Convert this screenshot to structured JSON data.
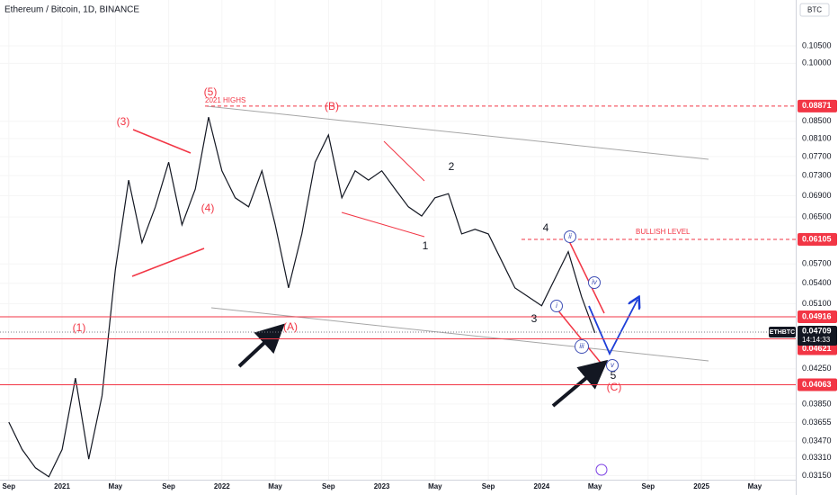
{
  "header": {
    "title": "Ethereum / Bitcoin, 1D, BINANCE",
    "currency": "BTC"
  },
  "chart_data": {
    "type": "line",
    "log_scale": true,
    "x": [
      "2020-09",
      "2020-10",
      "2020-11",
      "2020-12",
      "2021-01",
      "2021-02",
      "2021-03",
      "2021-04",
      "2021-05",
      "2021-06",
      "2021-07",
      "2021-08",
      "2021-09",
      "2021-10",
      "2021-11",
      "2021-12",
      "2022-01",
      "2022-02",
      "2022-03",
      "2022-04",
      "2022-05",
      "2022-06",
      "2022-07",
      "2022-08",
      "2022-09",
      "2022-10",
      "2022-11",
      "2022-12",
      "2023-01",
      "2023-02",
      "2023-03",
      "2023-04",
      "2023-05",
      "2023-06",
      "2023-07",
      "2023-08",
      "2023-09",
      "2023-10",
      "2023-11",
      "2023-12",
      "2024-01",
      "2024-02",
      "2024-03",
      "2024-04",
      "2024-05"
    ],
    "series": [
      {
        "name": "ETHBTC",
        "color": "#131722",
        "values": [
          0.0366,
          0.0339,
          0.0322,
          0.0314,
          0.0339,
          0.0414,
          0.033,
          0.0394,
          0.0561,
          0.0721,
          0.0605,
          0.0669,
          0.0758,
          0.0636,
          0.0703,
          0.086,
          0.074,
          0.0686,
          0.0669,
          0.074,
          0.0636,
          0.0533,
          0.062,
          0.0758,
          0.0818,
          0.0686,
          0.074,
          0.0721,
          0.074,
          0.0703,
          0.0669,
          0.0652,
          0.0686,
          0.0694,
          0.062,
          0.0628,
          0.062,
          0.0575,
          0.0533,
          0.052,
          0.0507,
          0.0547,
          0.059,
          0.052,
          0.047
        ]
      }
    ],
    "xlim": [
      "2020-08",
      "2025-07"
    ],
    "xticks": [
      {
        "value": "2020-09",
        "label": "Sep"
      },
      {
        "value": "2021-01",
        "label": "2021"
      },
      {
        "value": "2021-05",
        "label": "May"
      },
      {
        "value": "2021-09",
        "label": "Sep"
      },
      {
        "value": "2022-01",
        "label": "2022"
      },
      {
        "value": "2022-05",
        "label": "May"
      },
      {
        "value": "2022-09",
        "label": "Sep"
      },
      {
        "value": "2023-01",
        "label": "2023"
      },
      {
        "value": "2023-05",
        "label": "May"
      },
      {
        "value": "2023-09",
        "label": "Sep"
      },
      {
        "value": "2024-01",
        "label": "2024"
      },
      {
        "value": "2024-05",
        "label": "May"
      },
      {
        "value": "2024-09",
        "label": "Sep"
      },
      {
        "value": "2025-01",
        "label": "2025"
      },
      {
        "value": "2025-05",
        "label": "May"
      }
    ],
    "ylim": [
      0.0306,
      0.1194
    ],
    "yticks": [
      {
        "value": 0.105,
        "label": "0.10500"
      },
      {
        "value": 0.1,
        "label": "0.10000"
      },
      {
        "value": 0.085,
        "label": "0.08500"
      },
      {
        "value": 0.081,
        "label": "0.08100"
      },
      {
        "value": 0.077,
        "label": "0.07700"
      },
      {
        "value": 0.073,
        "label": "0.07300"
      },
      {
        "value": 0.069,
        "label": "0.06900"
      },
      {
        "value": 0.065,
        "label": "0.06500"
      },
      {
        "value": 0.057,
        "label": "0.05700"
      },
      {
        "value": 0.054,
        "label": "0.05400"
      },
      {
        "value": 0.051,
        "label": "0.05100"
      },
      {
        "value": 0.0425,
        "label": "0.04250"
      },
      {
        "value": 0.0385,
        "label": "0.03850"
      },
      {
        "value": 0.03655,
        "label": "0.03655"
      },
      {
        "value": 0.0347,
        "label": "0.03470"
      },
      {
        "value": 0.0331,
        "label": "0.03310"
      },
      {
        "value": 0.0315,
        "label": "0.03150"
      }
    ],
    "levels": [
      {
        "value": 0.08871,
        "style": "dashed",
        "color": "#f23645"
      },
      {
        "value": 0.06105,
        "style": "dashed",
        "color": "#f23645"
      },
      {
        "value": 0.04916,
        "style": "solid",
        "color": "#f23645"
      },
      {
        "value": 0.04621,
        "style": "solid",
        "color": "#f23645"
      },
      {
        "value": 0.04063,
        "style": "solid",
        "color": "#f23645"
      }
    ],
    "last": {
      "value": 0.04709,
      "countdown": "14:14:33"
    },
    "annotations": [
      "(5)",
      "2021 HIGHS",
      "(3)",
      "(4)",
      "(1)",
      "(B)",
      "(A)",
      "2",
      "1",
      "4",
      "3",
      "5",
      "(C)",
      "BULLISH LEVEL",
      "i",
      "ii",
      "iii",
      "iv",
      "v"
    ]
  }
}
